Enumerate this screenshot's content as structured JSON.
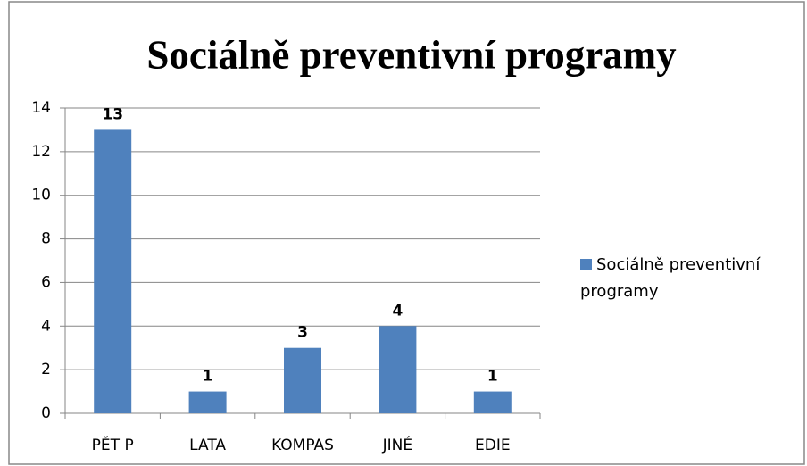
{
  "chart_data": {
    "type": "bar",
    "title": "Sociálně preventivní programy",
    "categories": [
      "PĚT P",
      "LATA",
      "KOMPAS",
      "JINÉ",
      "EDIE"
    ],
    "series": [
      {
        "name": "Sociálně preventivní programy",
        "color": "#4f81bd",
        "values": [
          13,
          1,
          3,
          4,
          1
        ]
      }
    ],
    "ylim": [
      0,
      14
    ],
    "yticks": [
      0,
      2,
      4,
      6,
      8,
      10,
      12,
      14
    ],
    "grid": true,
    "legend": "right"
  }
}
